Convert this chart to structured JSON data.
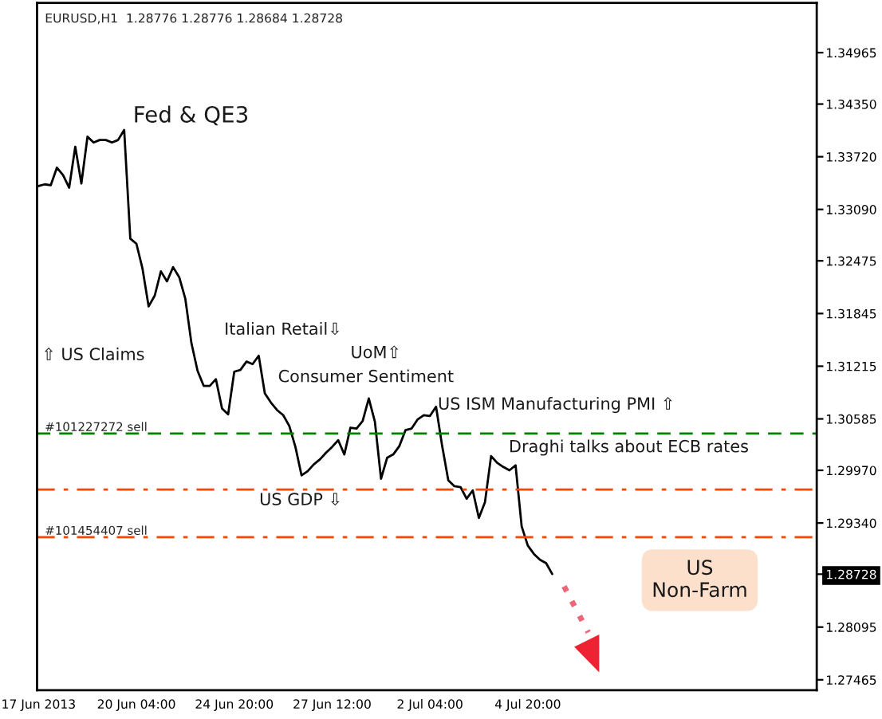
{
  "chart_data": {
    "type": "line",
    "title": "EURUSD,H1  1.28776 1.28776 1.28684 1.28728",
    "ylim": [
      1.2734,
      1.3556
    ],
    "categories": [
      "17 Jun 2013",
      null,
      null,
      null,
      null,
      null,
      null,
      null,
      null,
      null,
      null,
      null,
      null,
      null,
      null,
      null,
      "20 Jun 04:00",
      null,
      null,
      null,
      null,
      null,
      null,
      null,
      null,
      null,
      null,
      null,
      null,
      null,
      null,
      null,
      "24 Jun 20:00",
      null,
      null,
      null,
      null,
      null,
      null,
      null,
      null,
      null,
      null,
      null,
      null,
      null,
      null,
      null,
      "27 Jun 12:00",
      null,
      null,
      null,
      null,
      null,
      null,
      null,
      null,
      null,
      null,
      null,
      null,
      null,
      null,
      null,
      "2 Jul 04:00",
      null,
      null,
      null,
      null,
      null,
      null,
      null,
      null,
      null,
      null,
      null,
      null,
      null,
      null,
      null,
      "4 Jul 20:00",
      null,
      null,
      null,
      null
    ],
    "yticks": [
      {
        "value": 1.34965,
        "label": "1.34965"
      },
      {
        "value": 1.3435,
        "label": "1.34350"
      },
      {
        "value": 1.3372,
        "label": "1.33720"
      },
      {
        "value": 1.3309,
        "label": "1.33090"
      },
      {
        "value": 1.32475,
        "label": "1.32475"
      },
      {
        "value": 1.31845,
        "label": "1.31845"
      },
      {
        "value": 1.31215,
        "label": "1.31215"
      },
      {
        "value": 1.30585,
        "label": "1.30585"
      },
      {
        "value": 1.2997,
        "label": "1.29970"
      },
      {
        "value": 1.2934,
        "label": "1.29340"
      },
      {
        "value": 1.28728,
        "label": "1.28728"
      },
      {
        "value": 1.28095,
        "label": "1.28095"
      },
      {
        "value": 1.27465,
        "label": "1.27465"
      }
    ],
    "grid": false,
    "marker": "none",
    "line_style": "solid",
    "series": [
      {
        "color": "#000000",
        "values": [
          1.3337,
          1.3339,
          1.3338,
          1.3359,
          1.335,
          1.3335,
          1.3384,
          1.334,
          1.3396,
          1.3389,
          1.3392,
          1.3392,
          1.3389,
          1.3392,
          1.3404,
          1.3274,
          1.3268,
          1.3238,
          1.3193,
          1.3206,
          1.3235,
          1.3223,
          1.324,
          1.3228,
          1.3202,
          1.3149,
          1.3116,
          1.3098,
          1.3098,
          1.3106,
          1.3071,
          1.3064,
          1.3115,
          1.3117,
          1.3127,
          1.3124,
          1.3134,
          1.3089,
          1.3078,
          1.3069,
          1.3063,
          1.305,
          1.3025,
          1.2991,
          1.2996,
          1.3004,
          1.301,
          1.3018,
          1.3025,
          1.3033,
          1.3016,
          1.3048,
          1.3047,
          1.3056,
          1.3083,
          1.3055,
          1.2987,
          1.3012,
          1.3016,
          1.3026,
          1.3045,
          1.3047,
          1.3058,
          1.3063,
          1.3062,
          1.3073,
          1.3026,
          1.2985,
          1.2978,
          1.2977,
          1.2963,
          1.2973,
          1.294,
          1.2959,
          1.3014,
          1.3006,
          1.3001,
          1.2997,
          1.3003,
          1.293,
          1.2907,
          1.2897,
          1.289,
          1.2886,
          1.2873
        ]
      }
    ],
    "ref_lines": [
      {
        "axis": "y",
        "value": 1.3041,
        "label": "#101227272 sell",
        "color": "#008000",
        "line_style": "dashed"
      },
      {
        "axis": "y",
        "value": 1.2974,
        "label": null,
        "color": "#ff4500",
        "line_style": "dashdot"
      },
      {
        "axis": "y",
        "value": 1.2917,
        "label": "#101454407 sell",
        "color": "#ff4500",
        "line_style": "dashdot"
      }
    ],
    "annotations": [
      "Fed & QE3",
      "Italian Retail⇩",
      "⇧ US Claims",
      "UoM⇧",
      "Consumer Sentiment",
      "US ISM Manufacturing PMI ⇧",
      "Draghi talks about ECB rates",
      "US GDP ⇩",
      "US\nNon-Farm"
    ]
  }
}
